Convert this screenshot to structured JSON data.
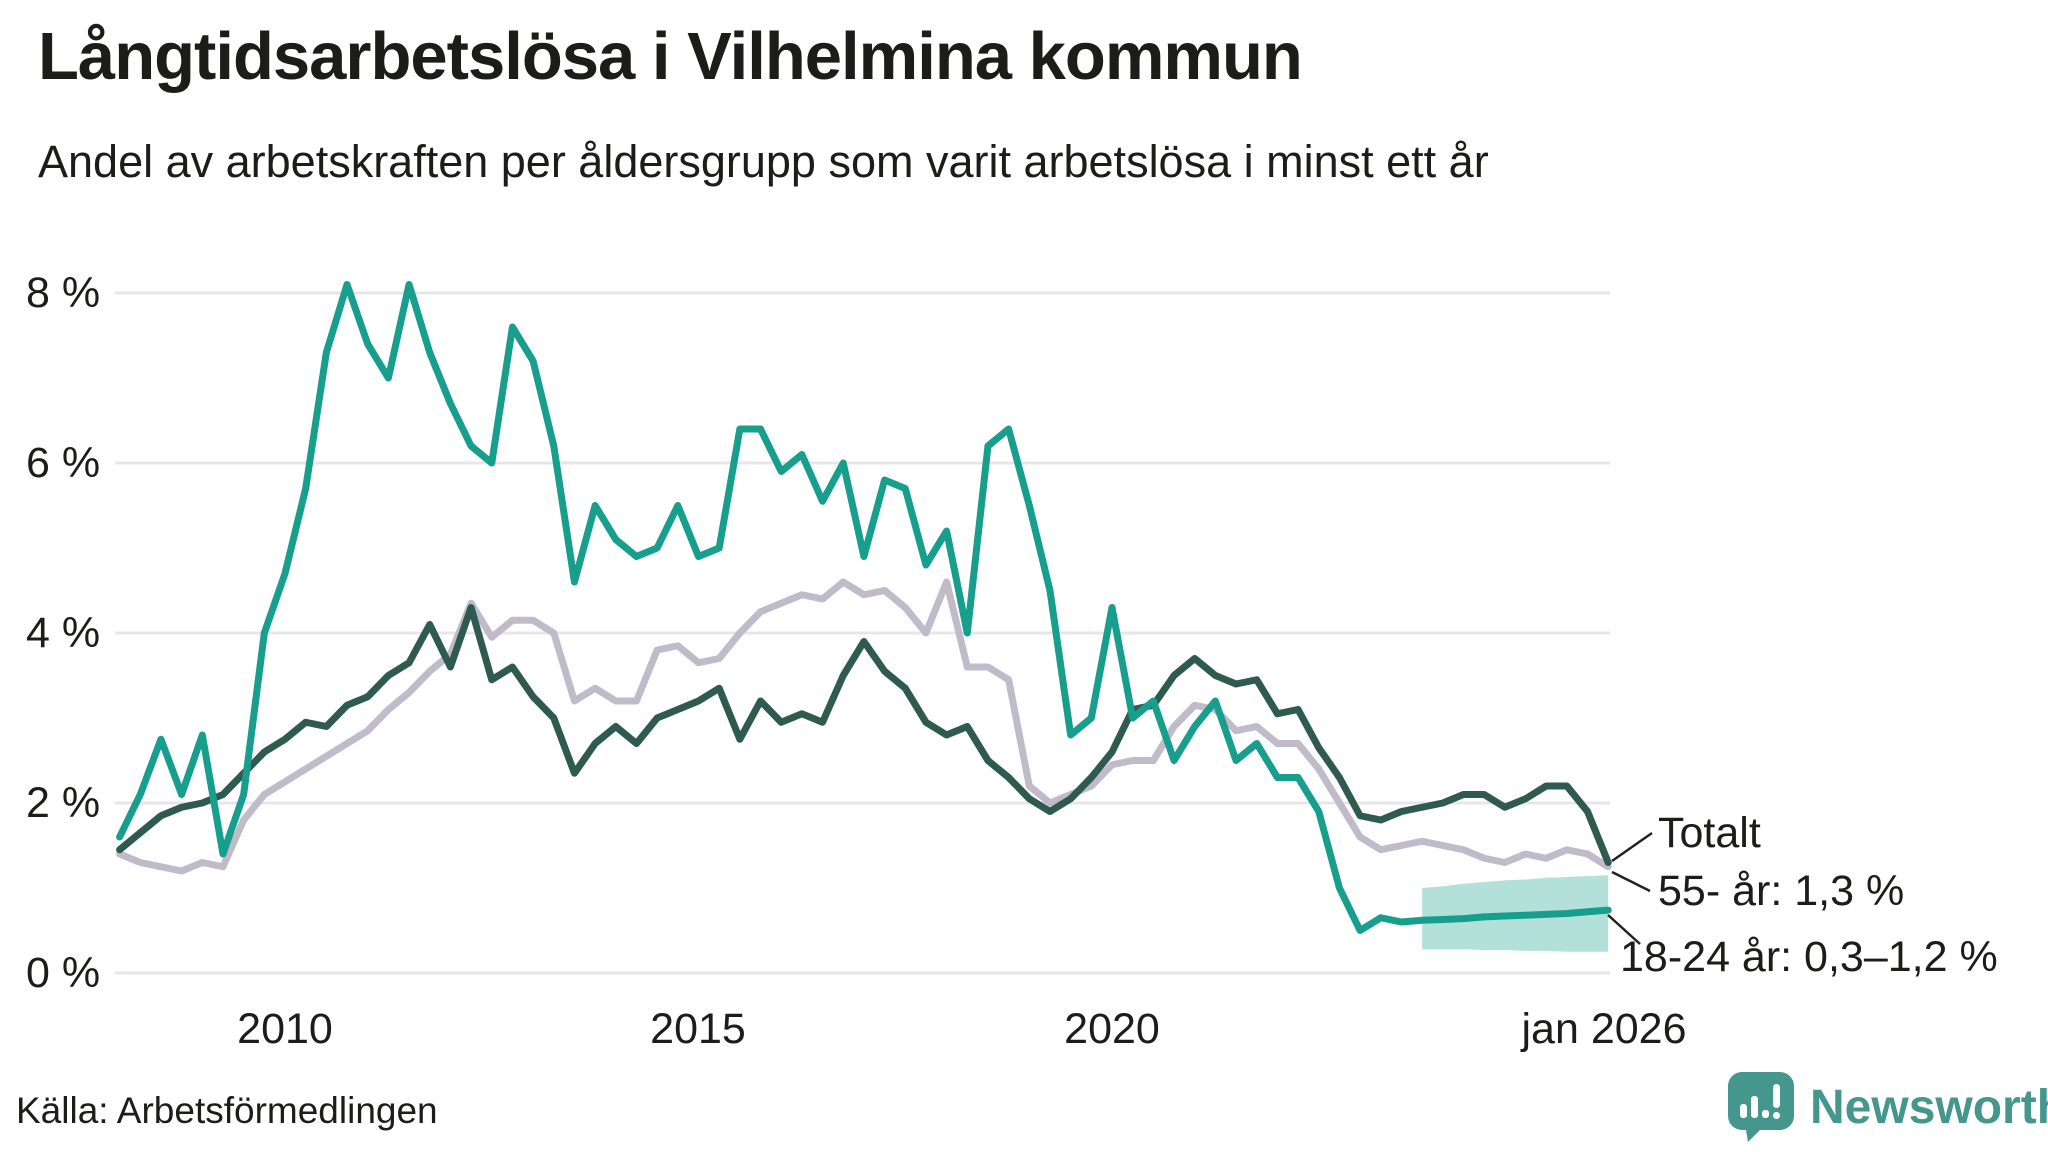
{
  "header": {
    "title": "Långtidsarbetslösa i Vilhelmina kommun",
    "subtitle": "Andel av arbetskraften per åldersgrupp som varit arbetslösa i minst ett år"
  },
  "chart_data": {
    "type": "line",
    "title": "Långtidsarbetslösa i Vilhelmina kommun",
    "subtitle": "Andel av arbetskraften per åldersgrupp som varit arbetslösa i minst ett år",
    "unit": "% av arbetskraften",
    "grid": true,
    "legend_position": "end-of-line-labels",
    "ylim": [
      0,
      8.5
    ],
    "xlim": [
      2008,
      2026.1
    ],
    "y_ticks": [
      {
        "label": "8 %",
        "value": 8
      },
      {
        "label": "6 %",
        "value": 6
      },
      {
        "label": "4 %",
        "value": 4
      },
      {
        "label": "2 %",
        "value": 2
      },
      {
        "label": "0 %",
        "value": 0
      }
    ],
    "x_ticks": [
      {
        "label": "2010",
        "t": 2010
      },
      {
        "label": "2015",
        "t": 2015
      },
      {
        "label": "2020",
        "t": 2020
      },
      {
        "label": "jan 2026",
        "t": 2026
      }
    ],
    "x": [
      2008,
      2008.25,
      2008.5,
      2008.75,
      2009,
      2009.25,
      2009.5,
      2009.75,
      2010,
      2010.25,
      2010.5,
      2010.75,
      2011,
      2011.25,
      2011.5,
      2011.75,
      2012,
      2012.25,
      2012.5,
      2012.75,
      2013,
      2013.25,
      2013.5,
      2013.75,
      2014,
      2014.25,
      2014.5,
      2014.75,
      2015,
      2015.25,
      2015.5,
      2015.75,
      2016,
      2016.25,
      2016.5,
      2016.75,
      2017,
      2017.25,
      2017.5,
      2017.75,
      2018,
      2018.25,
      2018.5,
      2018.75,
      2019,
      2019.25,
      2019.5,
      2019.75,
      2020,
      2020.25,
      2020.5,
      2020.75,
      2021,
      2021.25,
      2021.5,
      2021.75,
      2022,
      2022.25,
      2022.5,
      2022.75,
      2023,
      2023.25,
      2023.5,
      2023.75,
      2024,
      2024.25,
      2024.5,
      2024.75,
      2025,
      2025.25,
      2025.5,
      2025.75,
      2026
    ],
    "series": [
      {
        "name": "55- år",
        "color": "#c1bbc9",
        "end_label": "55- år: 1,3 %",
        "values": [
          1.4,
          1.3,
          1.25,
          1.2,
          1.3,
          1.25,
          1.8,
          2.1,
          2.25,
          2.4,
          2.55,
          2.7,
          2.85,
          3.1,
          3.3,
          3.55,
          3.75,
          4.35,
          3.95,
          4.15,
          4.15,
          4.0,
          3.2,
          3.35,
          3.2,
          3.2,
          3.8,
          3.85,
          3.65,
          3.7,
          4.0,
          4.25,
          4.35,
          4.45,
          4.4,
          4.6,
          4.45,
          4.5,
          4.3,
          4.0,
          4.6,
          3.6,
          3.6,
          3.45,
          2.2,
          2.0,
          2.1,
          2.2,
          2.45,
          2.5,
          2.5,
          2.9,
          3.15,
          3.1,
          2.85,
          2.9,
          2.7,
          2.7,
          2.4,
          2.0,
          1.6,
          1.45,
          1.5,
          1.55,
          1.5,
          1.45,
          1.35,
          1.3,
          1.4,
          1.35,
          1.45,
          1.4,
          1.25
        ]
      },
      {
        "name": "Totalt",
        "color": "#2f5a50",
        "end_label": "Totalt",
        "values": [
          1.45,
          1.65,
          1.85,
          1.95,
          2.0,
          2.1,
          2.35,
          2.6,
          2.75,
          2.95,
          2.9,
          3.15,
          3.25,
          3.5,
          3.65,
          4.1,
          3.6,
          4.3,
          3.45,
          3.6,
          3.25,
          3.0,
          2.35,
          2.7,
          2.9,
          2.7,
          3.0,
          3.1,
          3.2,
          3.35,
          2.75,
          3.2,
          2.95,
          3.05,
          2.95,
          3.5,
          3.9,
          3.55,
          3.35,
          2.95,
          2.8,
          2.9,
          2.5,
          2.3,
          2.05,
          1.9,
          2.05,
          2.3,
          2.6,
          3.1,
          3.15,
          3.5,
          3.7,
          3.5,
          3.4,
          3.45,
          3.05,
          3.1,
          2.65,
          2.3,
          1.85,
          1.8,
          1.9,
          1.95,
          2.0,
          2.1,
          2.1,
          1.95,
          2.05,
          2.2,
          2.2,
          1.9,
          1.3
        ]
      },
      {
        "name": "18-24 år",
        "color": "#179e8c",
        "end_label": "18-24 år: 0,3–1,2 %",
        "values": [
          1.6,
          2.1,
          2.75,
          2.1,
          2.8,
          1.4,
          2.1,
          4.0,
          4.7,
          5.7,
          7.3,
          8.1,
          7.4,
          7.0,
          8.1,
          7.3,
          6.7,
          6.2,
          6.0,
          7.6,
          7.2,
          6.2,
          4.6,
          5.5,
          5.1,
          4.9,
          5.0,
          5.5,
          4.9,
          5.0,
          6.4,
          6.4,
          5.9,
          6.1,
          5.55,
          6.0,
          4.9,
          5.8,
          5.7,
          4.8,
          5.2,
          4.0,
          6.2,
          6.4,
          5.5,
          4.5,
          2.8,
          3.0,
          4.3,
          3.0,
          3.2,
          2.5,
          2.9,
          3.2,
          2.5,
          2.7,
          2.3,
          2.3,
          1.9,
          1.0,
          0.5,
          0.65,
          0.6,
          0.62,
          0.63,
          0.64,
          0.66,
          0.67,
          0.68,
          0.69,
          0.7,
          0.72,
          0.74
        ]
      }
    ],
    "uncertainty_band": {
      "for_series": "18-24 år",
      "color": "#179e8c",
      "opacity": 0.32,
      "x": [
        2023.75,
        2024,
        2024.25,
        2024.5,
        2024.75,
        2025,
        2025.25,
        2025.5,
        2025.75,
        2026
      ],
      "top": [
        1.0,
        1.02,
        1.05,
        1.07,
        1.09,
        1.1,
        1.12,
        1.13,
        1.14,
        1.15
      ],
      "bottom": [
        0.28,
        0.28,
        0.28,
        0.27,
        0.27,
        0.26,
        0.26,
        0.25,
        0.25,
        0.25
      ]
    },
    "annotations": [
      {
        "label": "Totalt"
      },
      {
        "label": "55- år: 1,3 %"
      },
      {
        "label": "18-24 år: 0,3–1,2 %"
      }
    ]
  },
  "footer": {
    "source": "Källa: Arbetsförmedlingen",
    "logo_text": "Newsworthy"
  },
  "colors": {
    "teal_series": "#179e8c",
    "dark_series": "#2f5a50",
    "gray_series": "#c1bbc9",
    "band": "#a9ddd4",
    "gridline": "#e7e5e9",
    "text": "#1c1c1a",
    "logo": "#45978e"
  }
}
